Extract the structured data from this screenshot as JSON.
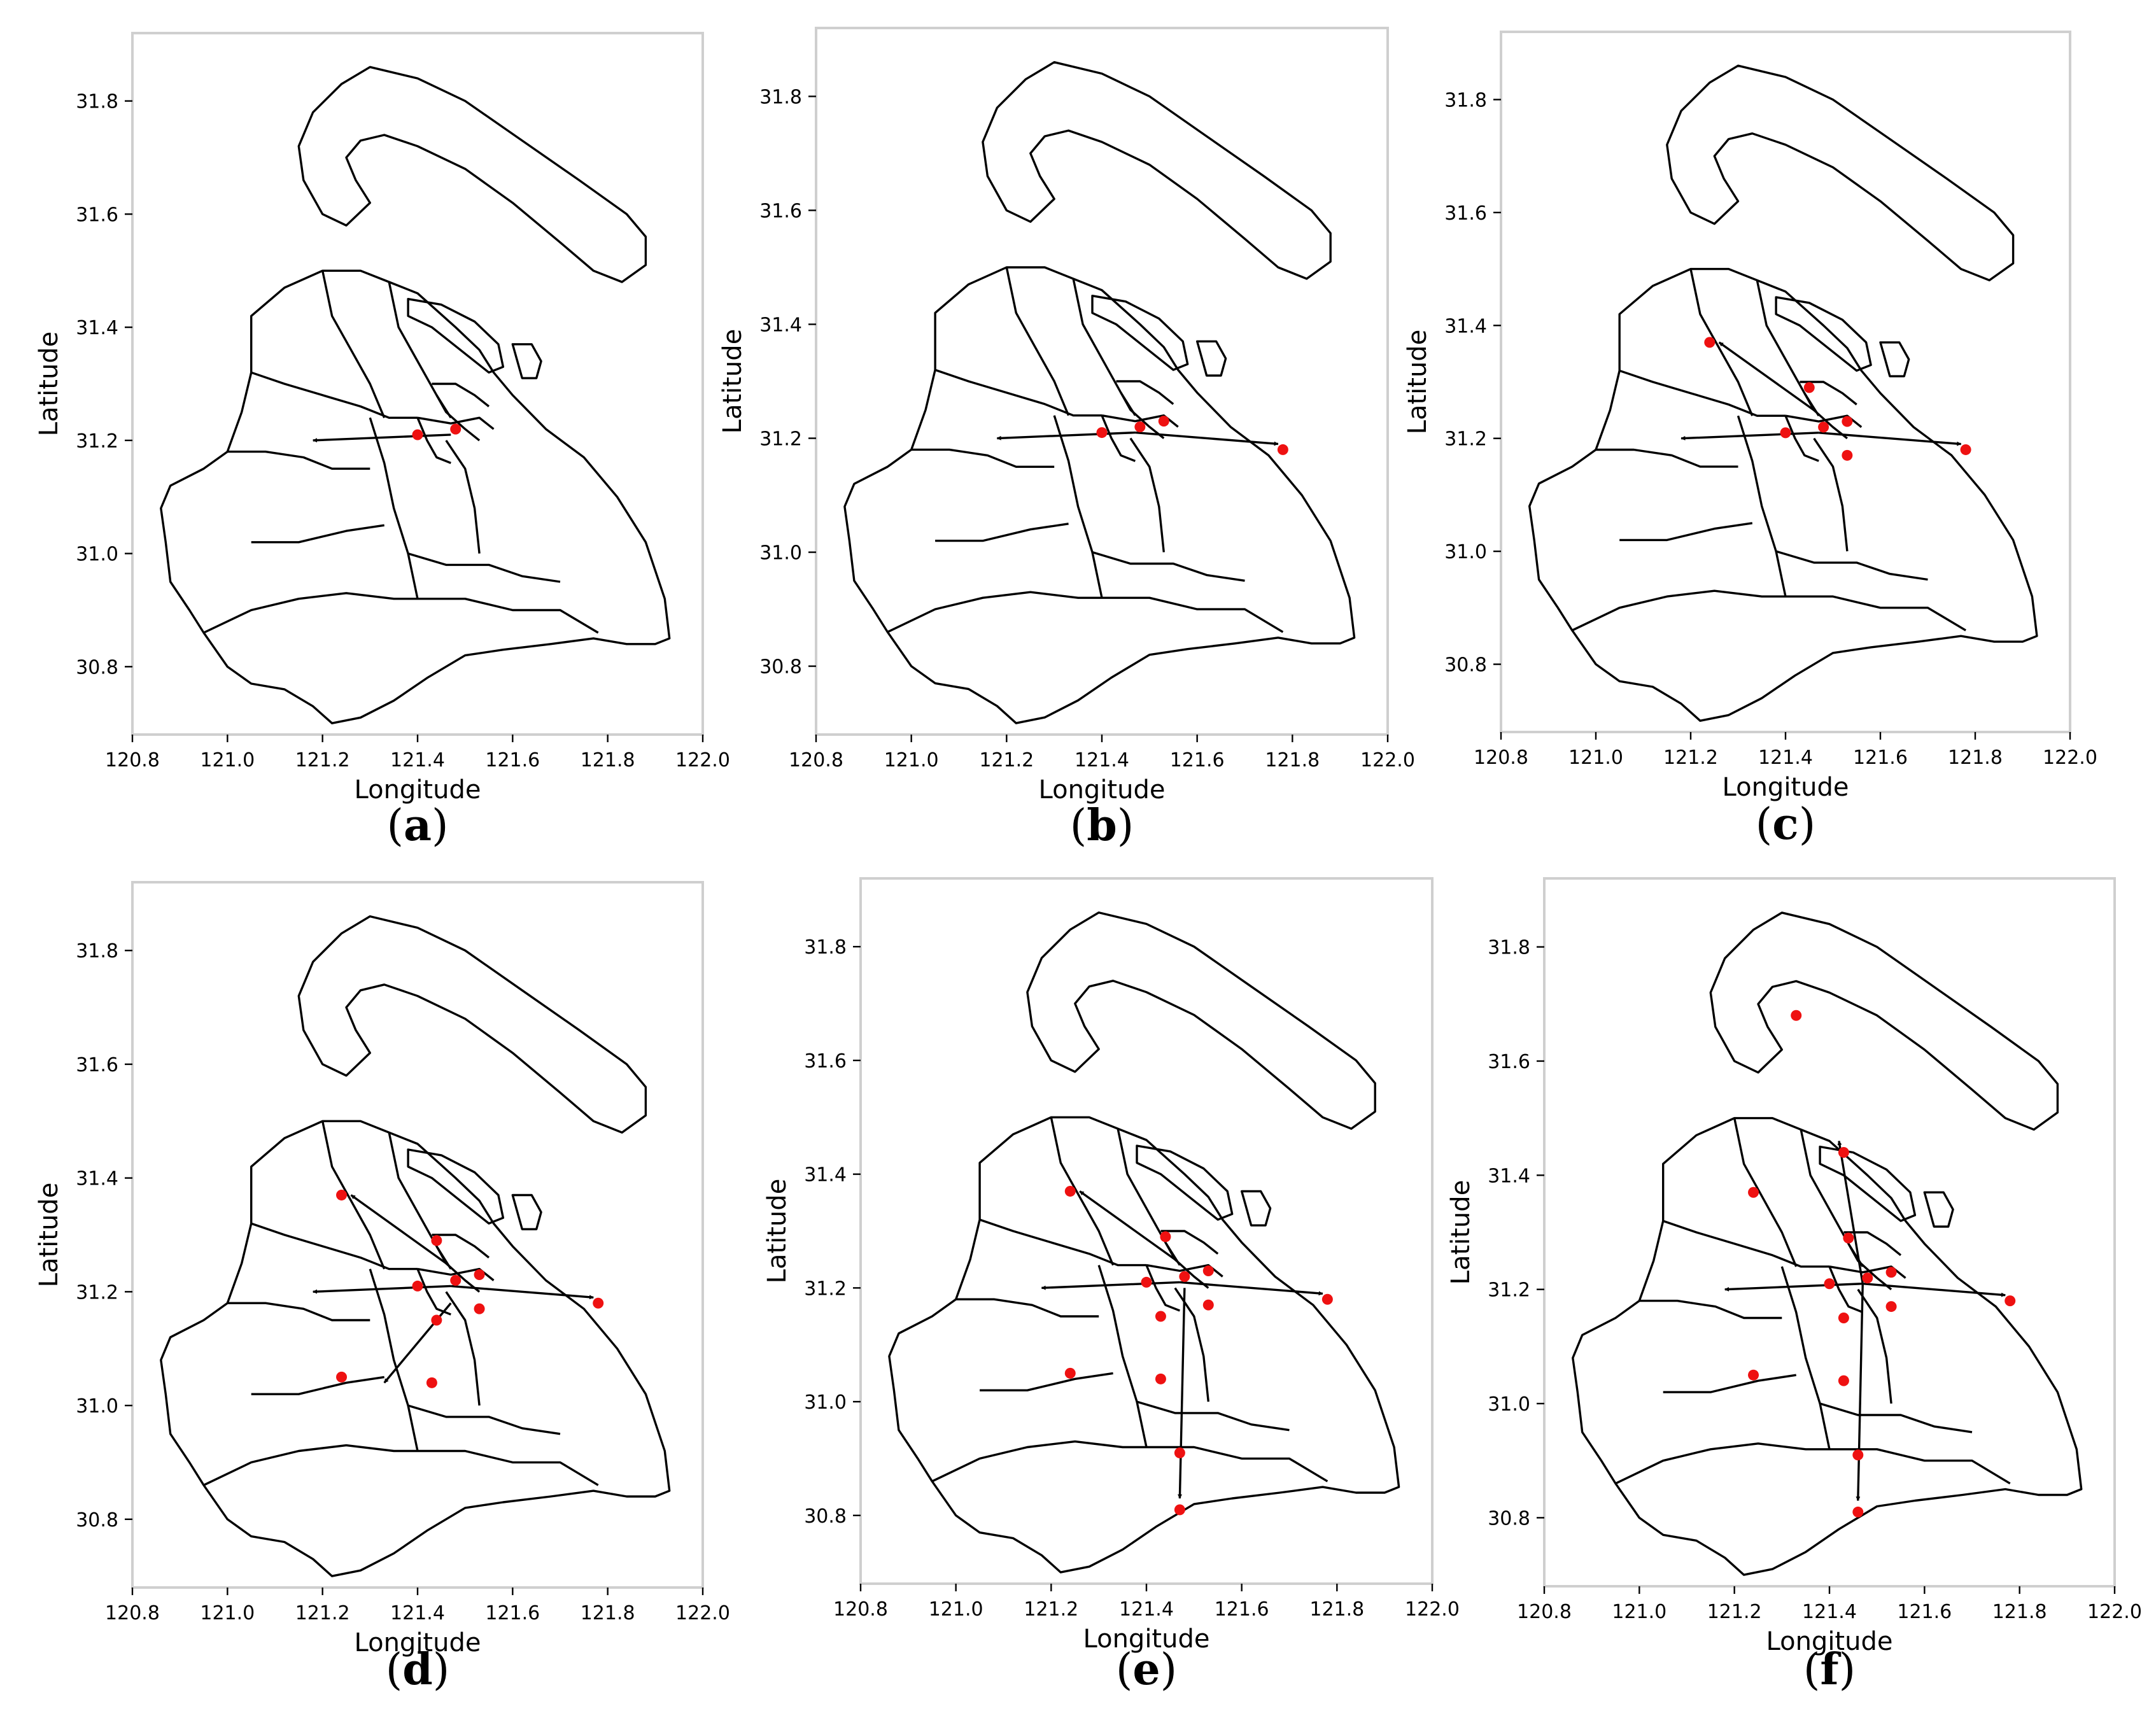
{
  "axes": {
    "xlabel": "Longitude",
    "ylabel": "Latitude",
    "xticks": [
      120.8,
      121.0,
      121.2,
      121.4,
      121.6,
      121.8,
      122.0
    ],
    "yticks": [
      30.8,
      31.0,
      31.2,
      31.4,
      31.6,
      31.8
    ],
    "xlim": [
      120.8,
      122.0
    ],
    "ylim": [
      30.68,
      31.92
    ]
  },
  "colors": {
    "point": "#ee1111",
    "arrow": "#000000",
    "boundary": "#000000",
    "frame": "#cfcfcf"
  },
  "chart_data": [
    {
      "type": "scatter",
      "panel": "a",
      "caption": "a",
      "points": [
        [
          121.4,
          31.21
        ],
        [
          121.48,
          31.22
        ]
      ],
      "arrows": [
        [
          [
            121.47,
            31.21
          ],
          [
            121.18,
            31.2
          ]
        ]
      ]
    },
    {
      "type": "scatter",
      "panel": "b",
      "caption": "b",
      "points": [
        [
          121.4,
          31.21
        ],
        [
          121.48,
          31.22
        ],
        [
          121.53,
          31.23
        ],
        [
          121.78,
          31.18
        ]
      ],
      "arrows": [
        [
          [
            121.47,
            31.21
          ],
          [
            121.18,
            31.2
          ]
        ],
        [
          [
            121.47,
            31.21
          ],
          [
            121.77,
            31.19
          ]
        ]
      ]
    },
    {
      "type": "scatter",
      "panel": "c",
      "caption": "c",
      "points": [
        [
          121.24,
          31.37
        ],
        [
          121.45,
          31.29
        ],
        [
          121.4,
          31.21
        ],
        [
          121.48,
          31.22
        ],
        [
          121.53,
          31.23
        ],
        [
          121.53,
          31.17
        ],
        [
          121.78,
          31.18
        ]
      ],
      "arrows": [
        [
          [
            121.47,
            31.21
          ],
          [
            121.18,
            31.2
          ]
        ],
        [
          [
            121.47,
            31.21
          ],
          [
            121.77,
            31.19
          ]
        ],
        [
          [
            121.46,
            31.25
          ],
          [
            121.26,
            31.37
          ]
        ]
      ]
    },
    {
      "type": "scatter",
      "panel": "d",
      "caption": "d",
      "points": [
        [
          121.24,
          31.37
        ],
        [
          121.44,
          31.29
        ],
        [
          121.4,
          31.21
        ],
        [
          121.48,
          31.22
        ],
        [
          121.53,
          31.23
        ],
        [
          121.53,
          31.17
        ],
        [
          121.44,
          31.15
        ],
        [
          121.24,
          31.05
        ],
        [
          121.43,
          31.04
        ],
        [
          121.78,
          31.18
        ]
      ],
      "arrows": [
        [
          [
            121.47,
            31.21
          ],
          [
            121.18,
            31.2
          ]
        ],
        [
          [
            121.47,
            31.21
          ],
          [
            121.77,
            31.19
          ]
        ],
        [
          [
            121.46,
            31.25
          ],
          [
            121.26,
            31.37
          ]
        ],
        [
          [
            121.47,
            31.18
          ],
          [
            121.33,
            31.04
          ]
        ]
      ]
    },
    {
      "type": "scatter",
      "panel": "e",
      "caption": "e",
      "points": [
        [
          121.24,
          31.37
        ],
        [
          121.44,
          31.29
        ],
        [
          121.4,
          31.21
        ],
        [
          121.48,
          31.22
        ],
        [
          121.53,
          31.23
        ],
        [
          121.53,
          31.17
        ],
        [
          121.43,
          31.15
        ],
        [
          121.24,
          31.05
        ],
        [
          121.43,
          31.04
        ],
        [
          121.47,
          30.91
        ],
        [
          121.47,
          30.81
        ],
        [
          121.78,
          31.18
        ]
      ],
      "arrows": [
        [
          [
            121.47,
            31.21
          ],
          [
            121.18,
            31.2
          ]
        ],
        [
          [
            121.47,
            31.21
          ],
          [
            121.77,
            31.19
          ]
        ],
        [
          [
            121.46,
            31.25
          ],
          [
            121.26,
            31.37
          ]
        ],
        [
          [
            121.48,
            31.2
          ],
          [
            121.47,
            30.83
          ]
        ]
      ]
    },
    {
      "type": "scatter",
      "panel": "f",
      "caption": "f",
      "points": [
        [
          121.33,
          31.68
        ],
        [
          121.43,
          31.44
        ],
        [
          121.24,
          31.37
        ],
        [
          121.44,
          31.29
        ],
        [
          121.4,
          31.21
        ],
        [
          121.48,
          31.22
        ],
        [
          121.53,
          31.23
        ],
        [
          121.53,
          31.17
        ],
        [
          121.43,
          31.15
        ],
        [
          121.24,
          31.05
        ],
        [
          121.43,
          31.04
        ],
        [
          121.46,
          30.91
        ],
        [
          121.46,
          30.81
        ],
        [
          121.78,
          31.18
        ]
      ],
      "arrows": [
        [
          [
            121.47,
            31.21
          ],
          [
            121.18,
            31.2
          ]
        ],
        [
          [
            121.47,
            31.21
          ],
          [
            121.77,
            31.19
          ]
        ],
        [
          [
            121.47,
            31.21
          ],
          [
            121.42,
            31.46
          ]
        ],
        [
          [
            121.47,
            31.21
          ],
          [
            121.46,
            30.83
          ]
        ]
      ]
    }
  ]
}
